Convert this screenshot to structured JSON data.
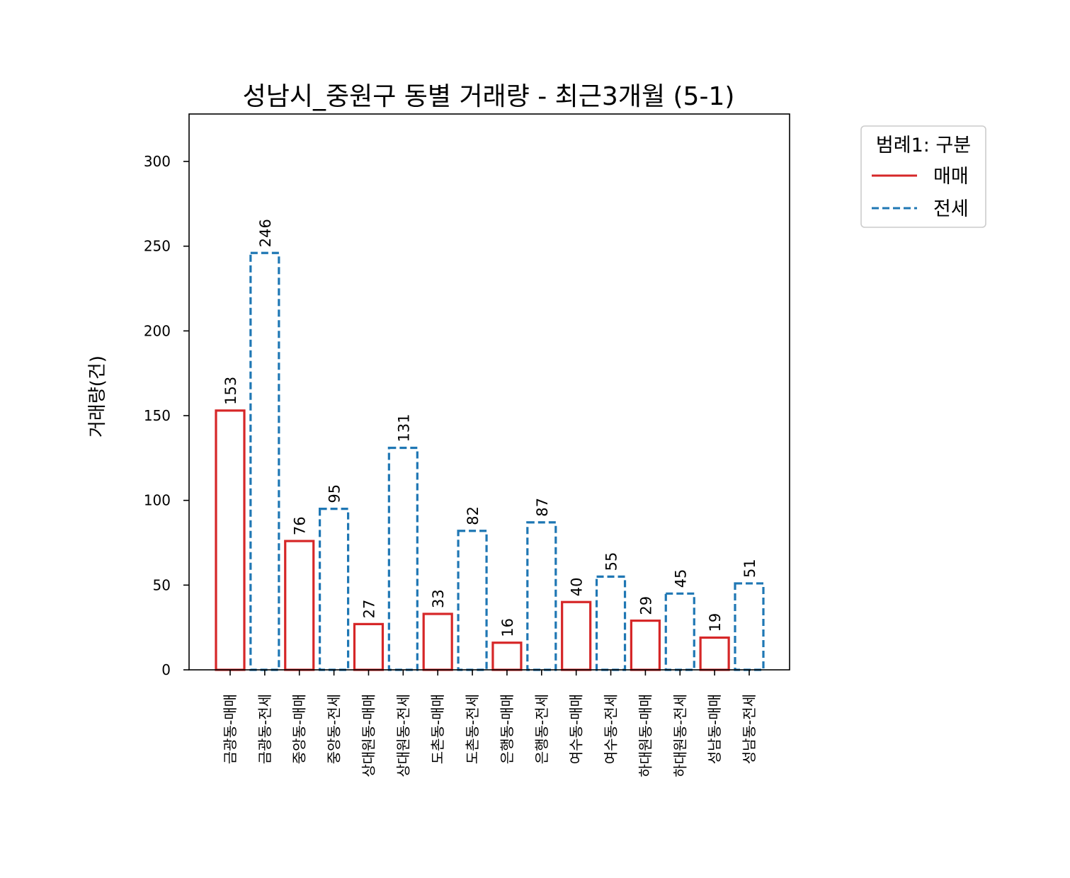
{
  "chart_data": {
    "type": "bar",
    "title": "성남시_중원구 동별 거래량 - 최근3개월 (5-1)",
    "ylabel": "거래량(건)",
    "xlabel": "",
    "ylim": [
      0,
      328
    ],
    "yticks": [
      0,
      50,
      100,
      150,
      200,
      250,
      300
    ],
    "grid": false,
    "legend": {
      "title": "범례1: 구분",
      "placement": "outside-top-right",
      "entries": [
        {
          "name": "매매",
          "color": "#d62728",
          "style": "solid"
        },
        {
          "name": "전세",
          "color": "#1f77b4",
          "style": "dashed"
        }
      ]
    },
    "categories": [
      "금광동-매매",
      "금광동-전세",
      "중앙동-매매",
      "중앙동-전세",
      "상대원동-매매",
      "상대원동-전세",
      "도촌동-매매",
      "도촌동-전세",
      "은행동-매매",
      "은행동-전세",
      "여수동-매매",
      "여수동-전세",
      "하대원동-매매",
      "하대원동-전세",
      "성남동-매매",
      "성남동-전세"
    ],
    "values": [
      153,
      246,
      76,
      95,
      27,
      131,
      33,
      82,
      16,
      87,
      40,
      55,
      29,
      45,
      19,
      51
    ],
    "bar_series": [
      "매매",
      "전세",
      "매매",
      "전세",
      "매매",
      "전세",
      "매매",
      "전세",
      "매매",
      "전세",
      "매매",
      "전세",
      "매매",
      "전세",
      "매매",
      "전세"
    ]
  }
}
